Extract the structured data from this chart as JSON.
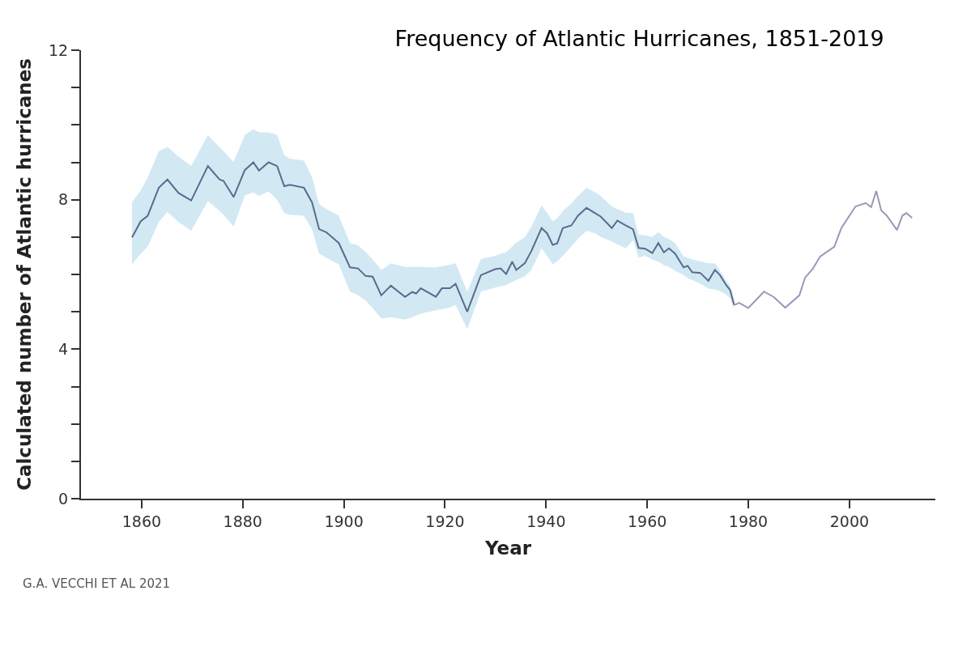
{
  "chart_data": {
    "type": "line",
    "title": "Frequency of Atlantic Hurricanes, 1851-2019",
    "xlabel": "Year",
    "ylabel": "Calculated number of Atlantic hurricanes",
    "annotations": [
      "G.A. VECCHI ET AL 2021"
    ],
    "xlim": [
      1848,
      2017
    ],
    "xticks": [
      1860,
      1880,
      1900,
      1920,
      1940,
      1960,
      1980,
      2000
    ],
    "ylim": [
      0,
      12
    ],
    "yticks": [
      0,
      {
        "value": 1,
        "label": null
      },
      {
        "value": 2,
        "label": null
      },
      {
        "value": 3,
        "label": null
      },
      4,
      {
        "value": 5,
        "label": null
      },
      {
        "value": 6,
        "label": null
      },
      {
        "value": 7,
        "label": null
      },
      8,
      {
        "value": 9,
        "label": null
      },
      {
        "value": 10,
        "label": null
      },
      {
        "value": 11,
        "label": null
      },
      12
    ],
    "marker": "none",
    "line_style": "solid",
    "series": [
      {
        "color": "#5b6a8c",
        "x": [
          1858.1,
          1859.8,
          1861.2,
          1863.4,
          1865.1,
          1867.3,
          1869.8,
          1873.1,
          1875.4,
          1876.2,
          1878.2,
          1880.4,
          1882.1,
          1883.2,
          1885.1,
          1886.8,
          1888.2,
          1889.3,
          1892.1,
          1893.7,
          1895.1,
          1896.5,
          1899.0,
          1901.2,
          1902.8,
          1904.3,
          1905.7,
          1907.4,
          1909.3,
          1912.1,
          1913.5,
          1914.3,
          1915.2,
          1918.2,
          1919.4,
          1921.0,
          1922.1,
          1924.4,
          1927.1,
          1929.9,
          1931.0,
          1932.1,
          1933.3,
          1934.1,
          1935.8,
          1937.1,
          1939.1,
          1940.2,
          1941.3,
          1942.2,
          1943.3,
          1945.0,
          1946.3,
          1948.0,
          1949.7,
          1950.8,
          1953.0,
          1954.1,
          1955.8,
          1957.2,
          1958.3,
          1959.6,
          1961.0,
          1962.2,
          1963.3,
          1964.3,
          1965.5,
          1967.2,
          1968.0,
          1968.9,
          1970.5,
          1972.1,
          1973.4,
          1974.4,
          1975.6,
          1976.4,
          1977.2
        ],
        "values": [
          6.99,
          7.42,
          7.57,
          8.32,
          8.54,
          8.18,
          7.98,
          8.9,
          8.54,
          8.5,
          8.07,
          8.79,
          9.0,
          8.78,
          9.0,
          8.9,
          8.36,
          8.4,
          8.32,
          7.93,
          7.21,
          7.13,
          6.84,
          6.19,
          6.16,
          5.96,
          5.94,
          5.44,
          5.7,
          5.4,
          5.53,
          5.49,
          5.63,
          5.4,
          5.63,
          5.63,
          5.75,
          5.0,
          5.98,
          6.14,
          6.16,
          6.01,
          6.34,
          6.12,
          6.3,
          6.63,
          7.24,
          7.1,
          6.79,
          6.83,
          7.24,
          7.31,
          7.57,
          7.78,
          7.64,
          7.55,
          7.24,
          7.44,
          7.31,
          7.21,
          6.71,
          6.69,
          6.57,
          6.84,
          6.59,
          6.7,
          6.56,
          6.19,
          6.23,
          6.06,
          6.04,
          5.83,
          6.12,
          5.98,
          5.72,
          5.58,
          5.18
        ],
        "lower": [
          6.27,
          6.55,
          6.74,
          7.4,
          7.67,
          7.4,
          7.17,
          7.96,
          7.7,
          7.6,
          7.28,
          8.11,
          8.2,
          8.1,
          8.22,
          8.0,
          7.64,
          7.6,
          7.57,
          7.2,
          6.56,
          6.45,
          6.27,
          5.54,
          5.45,
          5.3,
          5.1,
          4.82,
          4.85,
          4.79,
          4.85,
          4.9,
          4.95,
          5.04,
          5.07,
          5.12,
          5.18,
          4.53,
          5.54,
          5.65,
          5.68,
          5.72,
          5.8,
          5.85,
          5.95,
          6.12,
          6.7,
          6.5,
          6.27,
          6.35,
          6.5,
          6.75,
          6.95,
          7.17,
          7.1,
          7.0,
          6.88,
          6.8,
          6.7,
          6.92,
          6.45,
          6.5,
          6.4,
          6.34,
          6.25,
          6.2,
          6.1,
          5.98,
          5.9,
          5.85,
          5.75,
          5.62,
          5.6,
          5.55,
          5.47,
          5.35,
          5.08
        ],
        "upper": [
          7.93,
          8.25,
          8.6,
          9.3,
          9.41,
          9.15,
          8.9,
          9.73,
          9.4,
          9.3,
          9.01,
          9.73,
          9.88,
          9.8,
          9.8,
          9.73,
          9.19,
          9.1,
          9.05,
          8.6,
          7.89,
          7.75,
          7.57,
          6.84,
          6.78,
          6.6,
          6.4,
          6.12,
          6.3,
          6.2,
          6.2,
          6.2,
          6.2,
          6.19,
          6.22,
          6.26,
          6.3,
          5.54,
          6.41,
          6.5,
          6.55,
          6.59,
          6.75,
          6.85,
          7.0,
          7.28,
          7.85,
          7.65,
          7.42,
          7.5,
          7.7,
          7.9,
          8.1,
          8.32,
          8.2,
          8.1,
          7.82,
          7.75,
          7.65,
          7.64,
          7.06,
          7.05,
          7.0,
          7.13,
          7.0,
          6.95,
          6.84,
          6.48,
          6.45,
          6.4,
          6.35,
          6.3,
          6.3,
          6.1,
          5.83,
          5.7,
          5.33
        ]
      },
      {
        "color": "#9a98b8",
        "x": [
          1977.2,
          1978.2,
          1980.0,
          1983.1,
          1985.0,
          1987.3,
          1990.1,
          1991.2,
          1992.8,
          1994.2,
          1997.0,
          1998.4,
          2001.2,
          2003.2,
          2004.3,
          2005.3,
          2006.3,
          2007.4,
          2009.4,
          2010.5,
          2011.3,
          2012.4
        ],
        "values": [
          5.18,
          5.24,
          5.1,
          5.54,
          5.4,
          5.11,
          5.44,
          5.91,
          6.16,
          6.48,
          6.74,
          7.24,
          7.82,
          7.91,
          7.8,
          8.23,
          7.71,
          7.57,
          7.19,
          7.58,
          7.64,
          7.51
        ]
      }
    ]
  }
}
